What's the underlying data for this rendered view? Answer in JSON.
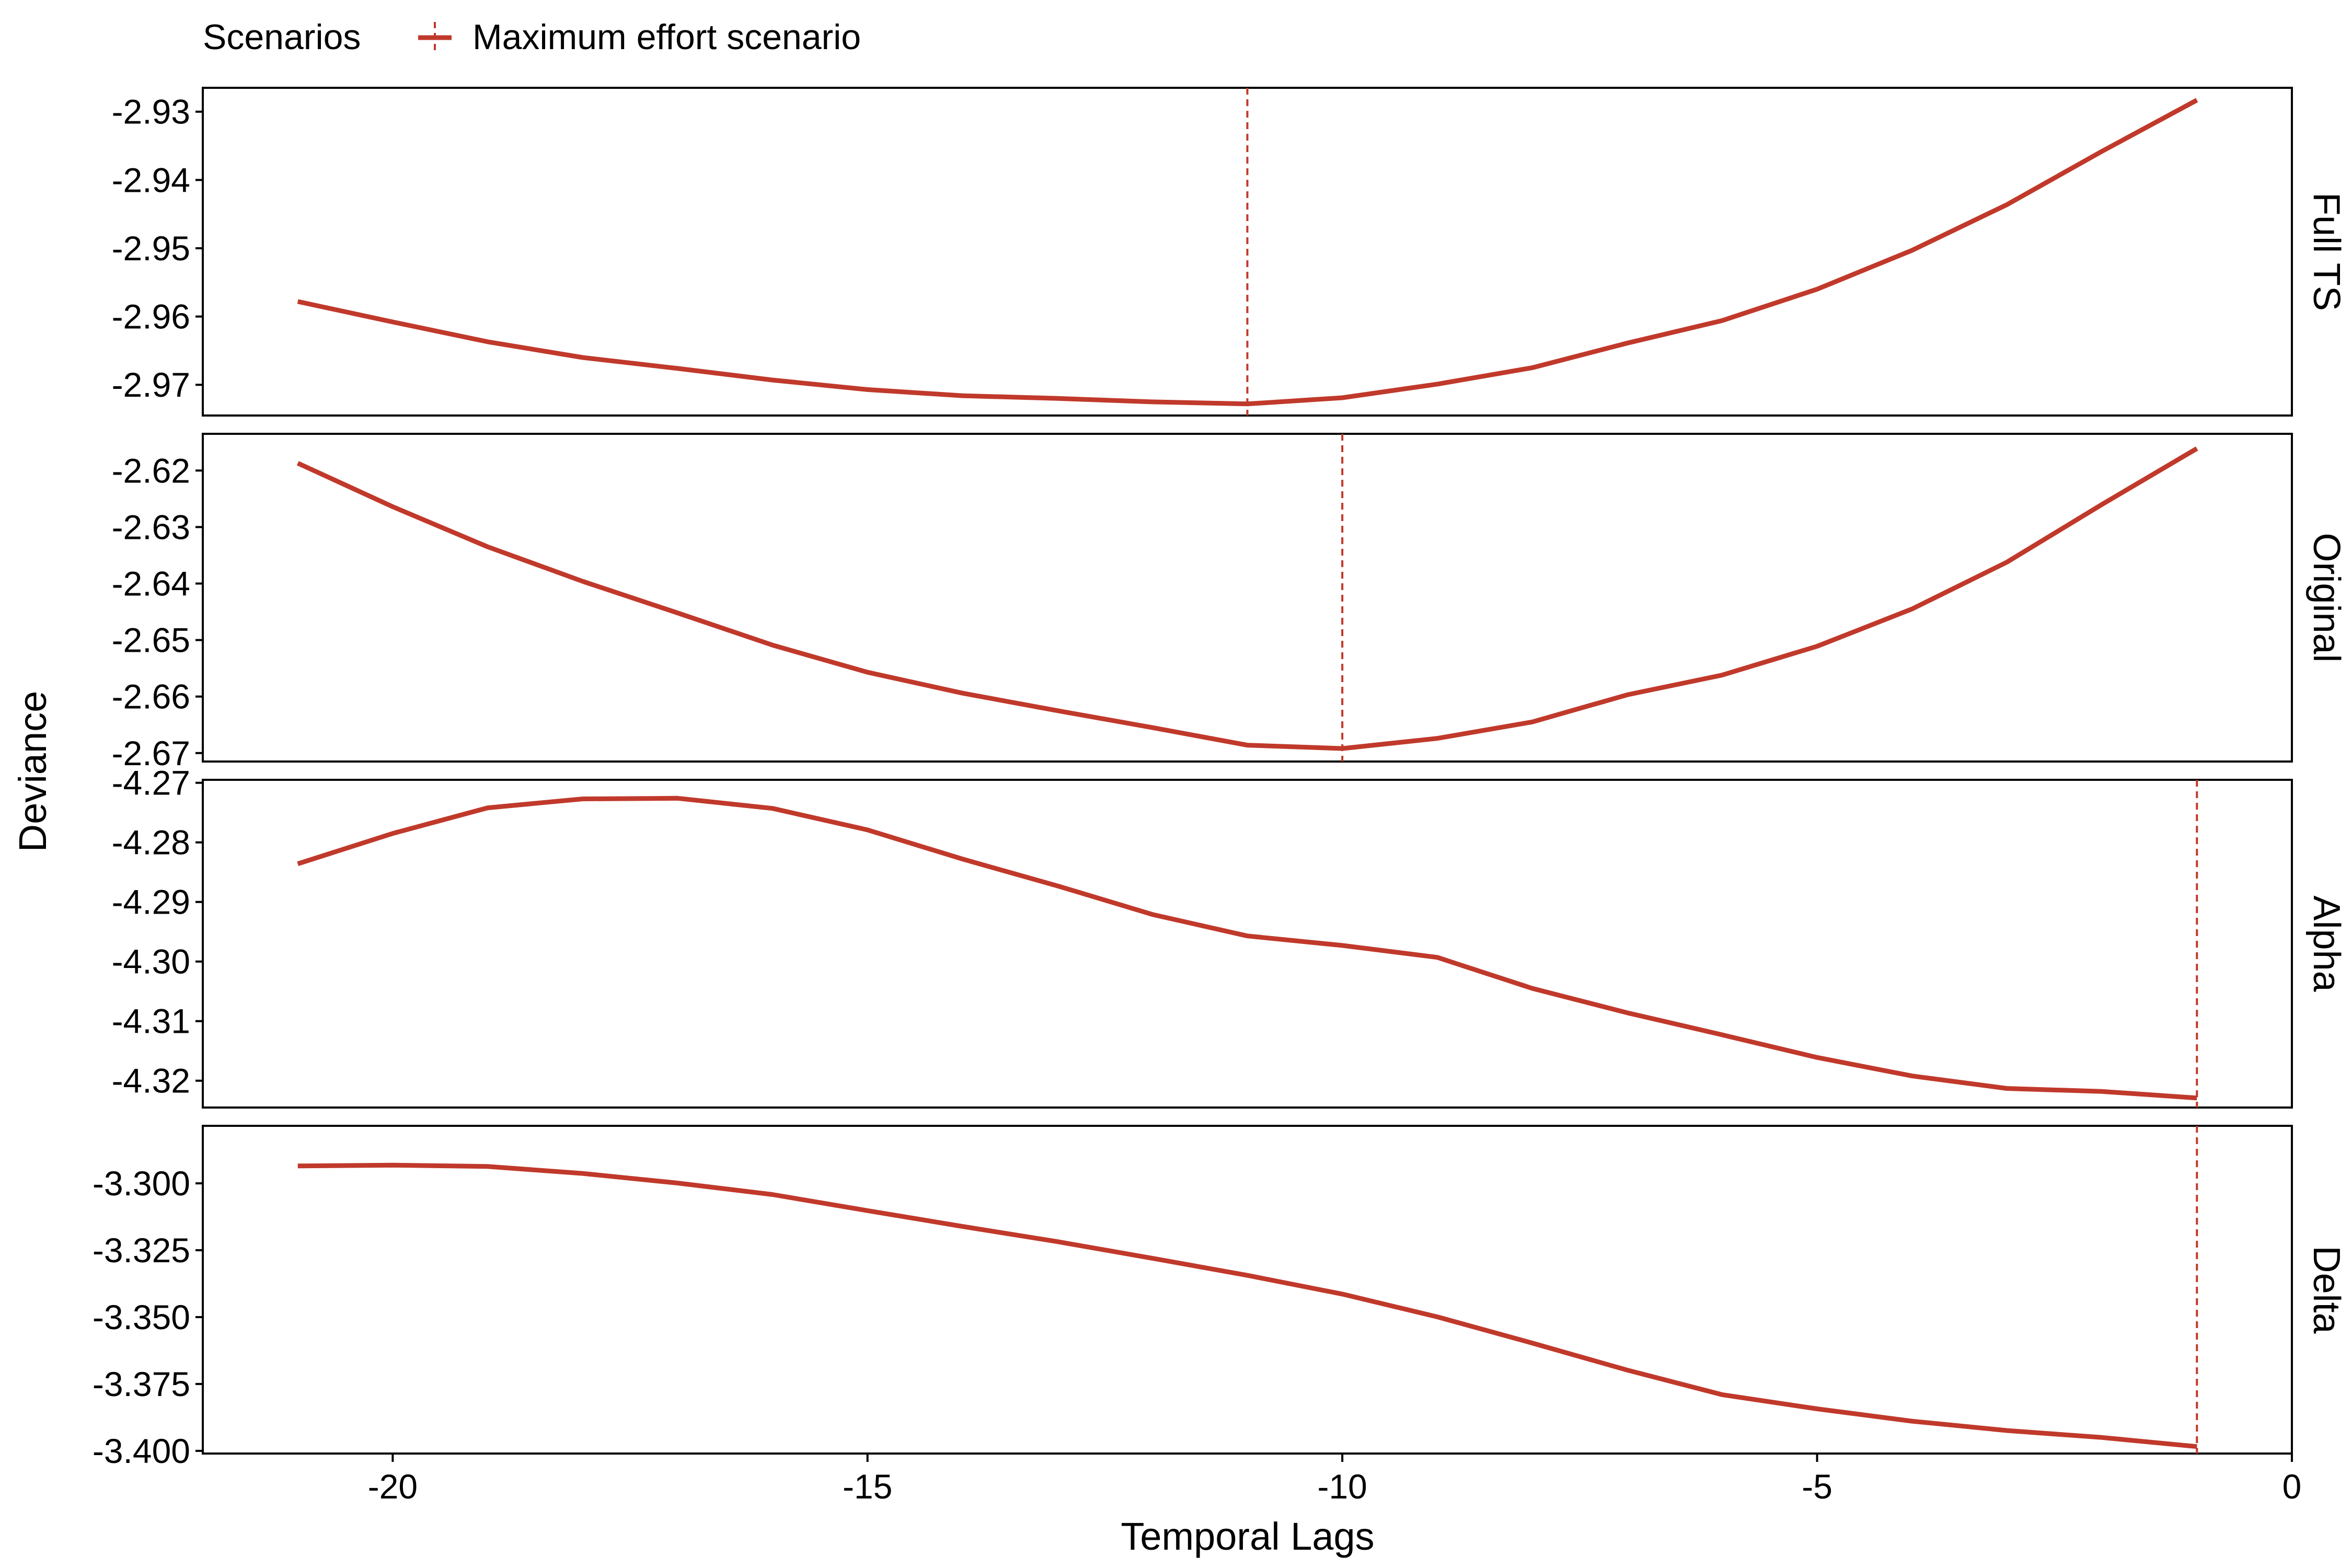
{
  "legend": {
    "title": "Scenarios",
    "entry": "Maximum effort scenario"
  },
  "axes": {
    "xlabel": "Temporal Lags",
    "ylabel": "Deviance"
  },
  "chart_data": {
    "type": "line",
    "facet_layout": "vertical, shared x axis, free y scales, strip labels on right",
    "series_color": "#C0392B",
    "x_ticks": [
      -20,
      -15,
      -10,
      -5,
      0
    ],
    "xlim": [
      -22,
      0
    ],
    "panels": [
      {
        "facet": "Full TS",
        "ylim": [
          -2.9745,
          -2.9265
        ],
        "y_ticks": [
          -2.97,
          -2.96,
          -2.95,
          -2.94,
          -2.93
        ],
        "y_tick_labels": [
          "-2.97",
          "-2.96",
          "-2.95",
          "-2.94",
          "-2.93"
        ],
        "max_effort_lag": -11,
        "x": [
          -21,
          -20,
          -19,
          -18,
          -17,
          -16,
          -15,
          -14,
          -13,
          -12,
          -11,
          -10,
          -9,
          -8,
          -7,
          -6,
          -5,
          -4,
          -3,
          -2,
          -1
        ],
        "y": [
          -2.9578,
          -2.9608,
          -2.9637,
          -2.966,
          -2.9676,
          -2.9693,
          -2.9707,
          -2.9716,
          -2.972,
          -2.9725,
          -2.9728,
          -2.9719,
          -2.9699,
          -2.9675,
          -2.9639,
          -2.9606,
          -2.956,
          -2.9503,
          -2.9436,
          -2.9358,
          -2.9283
        ]
      },
      {
        "facet": "Original",
        "ylim": [
          -2.6715,
          -2.6135
        ],
        "y_ticks": [
          -2.67,
          -2.66,
          -2.65,
          -2.64,
          -2.63,
          -2.62
        ],
        "y_tick_labels": [
          "-2.67",
          "-2.66",
          "-2.65",
          "-2.64",
          "-2.63",
          "-2.62"
        ],
        "max_effort_lag": -10,
        "x": [
          -21,
          -20,
          -19,
          -18,
          -17,
          -16,
          -15,
          -14,
          -13,
          -12,
          -11,
          -10,
          -9,
          -8,
          -7,
          -6,
          -5,
          -4,
          -3,
          -2,
          -1
        ],
        "y": [
          -2.6187,
          -2.6264,
          -2.6335,
          -2.6396,
          -2.6452,
          -2.6509,
          -2.6557,
          -2.6594,
          -2.6625,
          -2.6655,
          -2.6686,
          -2.6692,
          -2.6674,
          -2.6645,
          -2.6597,
          -2.6562,
          -2.6511,
          -2.6445,
          -2.6362,
          -2.626,
          -2.6161
        ]
      },
      {
        "facet": "Alpha",
        "ylim": [
          -4.3245,
          -4.2695
        ],
        "y_ticks": [
          -4.32,
          -4.31,
          -4.3,
          -4.29,
          -4.28,
          -4.27
        ],
        "y_tick_labels": [
          "-4.32",
          "-4.31",
          "-4.30",
          "-4.29",
          "-4.28",
          "-4.27"
        ],
        "max_effort_lag": -1,
        "x": [
          -21,
          -20,
          -19,
          -18,
          -17,
          -16,
          -15,
          -14,
          -13,
          -12,
          -11,
          -10,
          -9,
          -8,
          -7,
          -6,
          -5,
          -4,
          -3,
          -2,
          -1
        ],
        "y": [
          -4.2836,
          -4.2785,
          -4.2742,
          -4.2727,
          -4.2726,
          -4.2743,
          -4.2779,
          -4.2828,
          -4.2873,
          -4.2921,
          -4.2957,
          -4.2973,
          -4.2993,
          -4.3045,
          -4.3086,
          -4.3123,
          -4.3161,
          -4.3192,
          -4.3213,
          -4.3218,
          -4.3229
        ]
      },
      {
        "facet": "Delta",
        "ylim": [
          -3.401,
          -3.2785
        ],
        "y_ticks": [
          -3.4,
          -3.375,
          -3.35,
          -3.325,
          -3.3
        ],
        "y_tick_labels": [
          "-3.400",
          "-3.375",
          "-3.350",
          "-3.325",
          "-3.300"
        ],
        "max_effort_lag": -1,
        "x": [
          -21,
          -20,
          -19,
          -18,
          -17,
          -16,
          -15,
          -14,
          -13,
          -12,
          -11,
          -10,
          -9,
          -8,
          -7,
          -6,
          -5,
          -4,
          -3,
          -2,
          -1
        ],
        "y": [
          -3.2935,
          -3.2932,
          -3.2937,
          -3.2963,
          -3.2999,
          -3.3042,
          -3.3102,
          -3.3161,
          -3.3218,
          -3.328,
          -3.3344,
          -3.3414,
          -3.3499,
          -3.3597,
          -3.3698,
          -3.379,
          -3.3843,
          -3.3889,
          -3.3924,
          -3.395,
          -3.3984
        ]
      }
    ]
  }
}
